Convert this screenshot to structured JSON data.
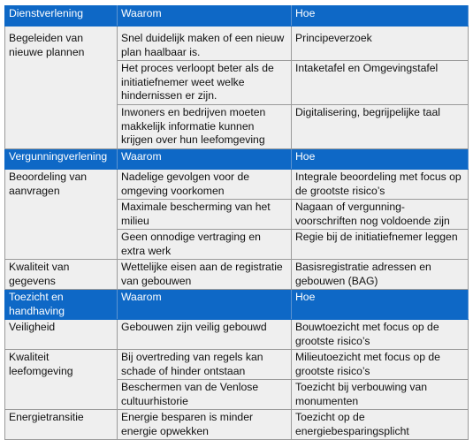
{
  "columns": {
    "waarom": "Waarom",
    "hoe": "Hoe"
  },
  "sections": [
    {
      "title": "Dienstverlening",
      "header_waarom": "Waarom",
      "header_hoe": "Hoe",
      "groups": [
        {
          "label": "Begeleiden van nieuwe plannen",
          "rows": [
            {
              "waarom": "Snel duidelijk maken of een nieuw plan haalbaar is.",
              "hoe": "Principeverzoek"
            },
            {
              "waarom": "Het proces verloopt beter als de initiatiefnemer weet welke hindernissen er zijn.",
              "hoe": "Intaketafel en Omgevingstafel"
            },
            {
              "waarom": "Inwoners en bedrijven moeten makkelijk informatie kunnen krijgen over hun leefomgeving",
              "hoe": "Digitalisering, begrijpelijke taal"
            }
          ]
        }
      ]
    },
    {
      "title": "Vergunningverlening",
      "header_waarom": "Waarom",
      "header_hoe": "Hoe",
      "groups": [
        {
          "label": "Beoordeling van aanvragen",
          "rows": [
            {
              "waarom": "Nadelige gevolgen voor de omgeving voorkomen",
              "hoe": "Integrale beoordeling met focus op de grootste risico’s"
            },
            {
              "waarom": "Maximale bescherming van het milieu",
              "hoe": "Nagaan of vergunning-voorschriften nog voldoende zijn"
            },
            {
              "waarom": "Geen onnodige vertraging en extra werk",
              "hoe": "Regie bij de initiatiefnemer leggen"
            }
          ]
        },
        {
          "label": "Kwaliteit van gegevens",
          "rows": [
            {
              "waarom": "Wettelijke eisen aan de registratie van gebouwen",
              "hoe": "Basisregistratie adressen en gebouwen (BAG)"
            }
          ]
        }
      ]
    },
    {
      "title": "Toezicht en handhaving",
      "header_waarom": "Waarom",
      "header_hoe": "Hoe",
      "groups": [
        {
          "label": "Veiligheid",
          "rows": [
            {
              "waarom": "Gebouwen zijn veilig gebouwd",
              "hoe": "Bouwtoezicht met focus op de grootste risico’s"
            }
          ]
        },
        {
          "label": "Kwaliteit leefomgeving",
          "rows": [
            {
              "waarom": "Bij overtreding van regels kan schade of hinder ontstaan",
              "hoe": "Milieutoezicht met focus op de grootste risico’s"
            },
            {
              "waarom": "Beschermen van de Venlose cultuurhistorie",
              "hoe": "Toezicht bij verbouwing van monumenten"
            }
          ]
        },
        {
          "label": "Energietransitie",
          "rows": [
            {
              "waarom": "Energie besparen is minder energie opwekken",
              "hoe": "Toezicht op de energiebesparingsplicht"
            }
          ]
        }
      ]
    }
  ]
}
